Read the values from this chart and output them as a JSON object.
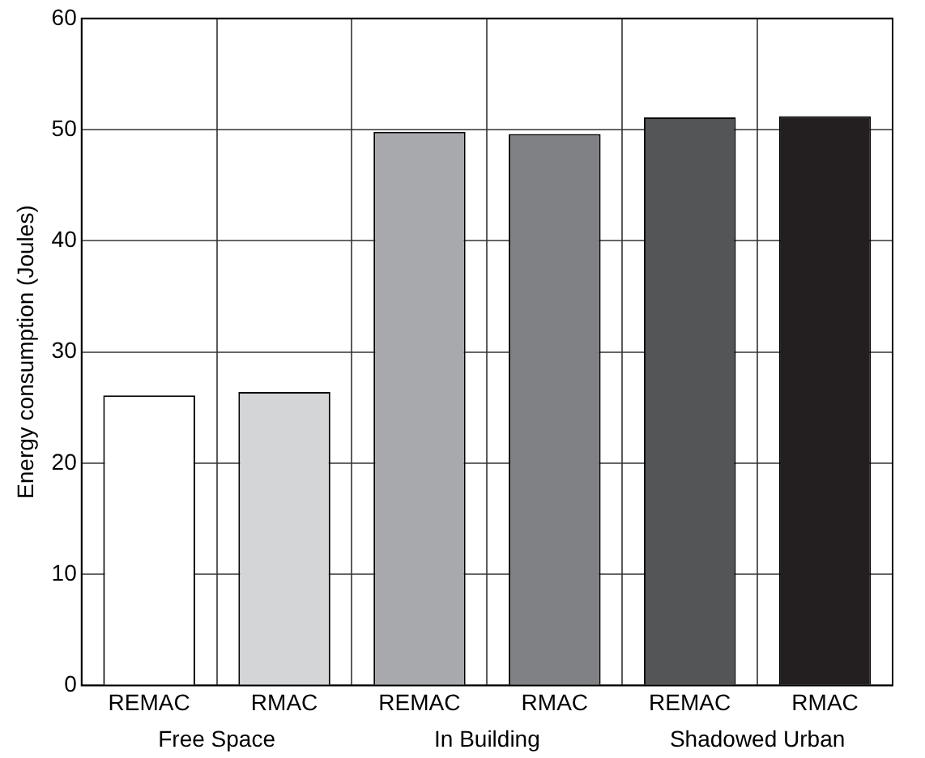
{
  "chart_data": {
    "type": "bar",
    "ylabel": "Energy consumption (Joules)",
    "categories": [
      "REMAC",
      "RMAC",
      "REMAC",
      "RMAC",
      "REMAC",
      "RMAC"
    ],
    "values": [
      26.1,
      26.4,
      49.8,
      49.6,
      51.1,
      51.2
    ],
    "colors": [
      "#ffffff",
      "#d4d5d7",
      "#a8a9ad",
      "#808185",
      "#545557",
      "#231f20"
    ],
    "annotations": [
      "Free Space",
      "In Building",
      "Shadowed Urban"
    ],
    "ylim": [
      0,
      60
    ],
    "yticks": [
      0,
      10,
      20,
      30,
      40,
      50,
      60
    ],
    "grid": true,
    "legend": false
  }
}
